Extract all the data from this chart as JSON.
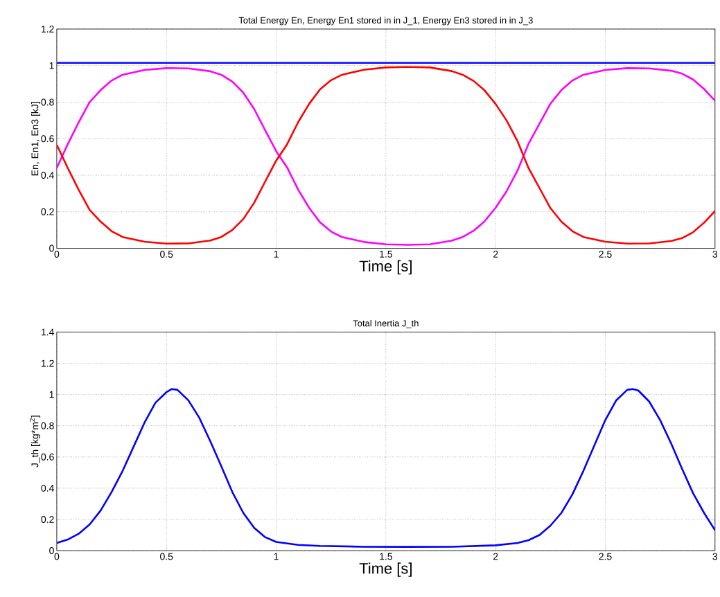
{
  "chart_data": [
    {
      "type": "line",
      "title": "Total Energy En, Energy En1 stored in in J_1, Energy En3 stored in in J_3",
      "xlabel": "Time [s]",
      "ylabel": "En, En1, En3 [kJ]",
      "xlim": [
        0,
        3
      ],
      "ylim": [
        0,
        1.2
      ],
      "xticks": [
        0,
        0.5,
        1,
        1.5,
        2,
        2.5,
        3
      ],
      "yticks": [
        0,
        0.2,
        0.4,
        0.6,
        0.8,
        1,
        1.2
      ],
      "grid": true,
      "x": [
        0,
        0.05,
        0.1,
        0.15,
        0.2,
        0.25,
        0.3,
        0.4,
        0.5,
        0.6,
        0.7,
        0.75,
        0.8,
        0.85,
        0.9,
        0.95,
        1.0,
        1.05,
        1.1,
        1.15,
        1.2,
        1.25,
        1.3,
        1.4,
        1.5,
        1.6,
        1.7,
        1.8,
        1.85,
        1.9,
        1.95,
        2.0,
        2.05,
        2.1,
        2.15,
        2.2,
        2.25,
        2.3,
        2.35,
        2.4,
        2.5,
        2.6,
        2.7,
        2.8,
        2.85,
        2.9,
        2.95,
        3.0
      ],
      "series": [
        {
          "color": "#0000ff",
          "x": [
            0,
            3
          ],
          "values": [
            1.015,
            1.015
          ]
        },
        {
          "color": "#ff00ff",
          "values": [
            0.44,
            0.57,
            0.69,
            0.8,
            0.866,
            0.918,
            0.95,
            0.976,
            0.986,
            0.985,
            0.969,
            0.95,
            0.912,
            0.852,
            0.762,
            0.646,
            0.532,
            0.442,
            0.322,
            0.222,
            0.142,
            0.092,
            0.062,
            0.035,
            0.022,
            0.019,
            0.022,
            0.042,
            0.062,
            0.096,
            0.148,
            0.222,
            0.312,
            0.426,
            0.572,
            0.682,
            0.792,
            0.866,
            0.918,
            0.95,
            0.976,
            0.986,
            0.985,
            0.972,
            0.956,
            0.924,
            0.872,
            0.808
          ]
        },
        {
          "color": "#ff0000",
          "values": [
            0.567,
            0.44,
            0.32,
            0.21,
            0.146,
            0.094,
            0.062,
            0.036,
            0.026,
            0.027,
            0.043,
            0.062,
            0.1,
            0.16,
            0.25,
            0.366,
            0.48,
            0.57,
            0.69,
            0.79,
            0.87,
            0.92,
            0.95,
            0.977,
            0.99,
            0.993,
            0.99,
            0.97,
            0.95,
            0.916,
            0.864,
            0.79,
            0.7,
            0.586,
            0.44,
            0.33,
            0.22,
            0.146,
            0.094,
            0.062,
            0.036,
            0.026,
            0.027,
            0.04,
            0.056,
            0.088,
            0.14,
            0.204
          ]
        }
      ]
    },
    {
      "type": "line",
      "title": "Total Inertia J_th",
      "xlabel": "Time [s]",
      "ylabel": "J_th [kg*m$^{2}$]",
      "xlim": [
        0,
        3
      ],
      "ylim": [
        0,
        1.4
      ],
      "xticks": [
        0,
        0.5,
        1,
        1.5,
        2,
        2.5,
        3
      ],
      "yticks": [
        0,
        0.2,
        0.4,
        0.6,
        0.8,
        1,
        1.2,
        1.4
      ],
      "grid": true,
      "x": [
        0,
        0.05,
        0.1,
        0.15,
        0.2,
        0.25,
        0.3,
        0.35,
        0.4,
        0.45,
        0.5,
        0.525,
        0.55,
        0.6,
        0.65,
        0.7,
        0.75,
        0.8,
        0.85,
        0.9,
        0.95,
        1.0,
        1.1,
        1.2,
        1.4,
        1.6,
        1.8,
        2.0,
        2.1,
        2.15,
        2.2,
        2.25,
        2.3,
        2.35,
        2.4,
        2.45,
        2.5,
        2.55,
        2.6,
        2.625,
        2.65,
        2.7,
        2.75,
        2.8,
        2.85,
        2.9,
        2.95,
        3.0
      ],
      "series": [
        {
          "color": "#0000ff",
          "values": [
            0.049,
            0.071,
            0.108,
            0.168,
            0.257,
            0.376,
            0.51,
            0.665,
            0.82,
            0.948,
            1.015,
            1.035,
            1.03,
            0.962,
            0.85,
            0.7,
            0.54,
            0.376,
            0.242,
            0.146,
            0.086,
            0.056,
            0.037,
            0.03,
            0.025,
            0.024,
            0.025,
            0.034,
            0.049,
            0.067,
            0.1,
            0.16,
            0.242,
            0.36,
            0.51,
            0.673,
            0.836,
            0.963,
            1.03,
            1.035,
            1.026,
            0.955,
            0.836,
            0.687,
            0.524,
            0.368,
            0.242,
            0.131
          ]
        }
      ]
    }
  ]
}
